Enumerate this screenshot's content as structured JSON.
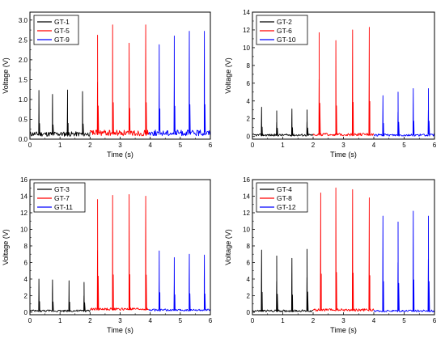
{
  "colors": {
    "black": "#000000",
    "red": "#ff0000",
    "blue": "#0000ff"
  },
  "chart_data": [
    {
      "type": "line",
      "xlabel": "Time (s)",
      "ylabel": "Voltage (V)",
      "xlim": [
        0,
        6
      ],
      "ylim": [
        0,
        3.2
      ],
      "xticks": [
        0,
        1,
        2,
        3,
        4,
        5,
        6
      ],
      "yticks": [
        0.0,
        0.5,
        1.0,
        1.5,
        2.0,
        2.5,
        3.0
      ],
      "ytick_labels": [
        "0.0",
        "0.5",
        "1.0",
        "1.5",
        "2.0",
        "2.5",
        "3.0"
      ],
      "legend_position": "top-left",
      "series": [
        {
          "name": "GT-1",
          "color": "#000000",
          "x_range": [
            0,
            2.0
          ],
          "baseline": 0.1,
          "noise": 0.12,
          "peaks": [
            [
              0.3,
              1.23
            ],
            [
              0.75,
              1.13
            ],
            [
              1.25,
              1.24
            ],
            [
              1.75,
              1.2
            ]
          ]
        },
        {
          "name": "GT-5",
          "color": "#ff0000",
          "x_range": [
            2.0,
            3.95
          ],
          "baseline": 0.12,
          "noise": 0.15,
          "peaks": [
            [
              2.25,
              2.62
            ],
            [
              2.75,
              2.88
            ],
            [
              3.3,
              2.42
            ],
            [
              3.85,
              2.88
            ]
          ]
        },
        {
          "name": "GT-9",
          "color": "#0000ff",
          "x_range": [
            3.95,
            6.0
          ],
          "baseline": 0.12,
          "noise": 0.15,
          "peaks": [
            [
              4.3,
              2.38
            ],
            [
              4.8,
              2.6
            ],
            [
              5.3,
              2.72
            ],
            [
              5.8,
              2.72
            ]
          ]
        }
      ]
    },
    {
      "type": "line",
      "xlabel": "Time (s)",
      "ylabel": "Voltage (V)",
      "xlim": [
        0,
        6
      ],
      "ylim": [
        -0.3,
        14
      ],
      "xticks": [
        0,
        1,
        2,
        3,
        4,
        5,
        6
      ],
      "yticks": [
        0,
        2,
        4,
        6,
        8,
        10,
        12,
        14
      ],
      "ytick_labels": [
        "0",
        "2",
        "4",
        "6",
        "8",
        "10",
        "12",
        "14"
      ],
      "legend_position": "top-left",
      "series": [
        {
          "name": "GT-2",
          "color": "#000000",
          "x_range": [
            0,
            2.0
          ],
          "baseline": 0.1,
          "noise": 0.25,
          "peaks": [
            [
              0.3,
              3.3
            ],
            [
              0.8,
              2.9
            ],
            [
              1.3,
              3.1
            ],
            [
              1.8,
              3.0
            ]
          ]
        },
        {
          "name": "GT-6",
          "color": "#ff0000",
          "x_range": [
            2.0,
            4.0
          ],
          "baseline": 0.15,
          "noise": 0.3,
          "peaks": [
            [
              2.2,
              11.7
            ],
            [
              2.75,
              10.8
            ],
            [
              3.3,
              12.0
            ],
            [
              3.85,
              12.3
            ]
          ]
        },
        {
          "name": "GT-10",
          "color": "#0000ff",
          "x_range": [
            4.0,
            6.0
          ],
          "baseline": 0.1,
          "noise": 0.25,
          "peaks": [
            [
              4.3,
              4.6
            ],
            [
              4.8,
              5.0
            ],
            [
              5.3,
              5.4
            ],
            [
              5.8,
              5.4
            ]
          ]
        }
      ]
    },
    {
      "type": "line",
      "xlabel": "Time (s)",
      "ylabel": "Voltage (V)",
      "xlim": [
        0,
        6
      ],
      "ylim": [
        -0.3,
        16
      ],
      "xticks": [
        0,
        1,
        2,
        3,
        4,
        5,
        6
      ],
      "yticks": [
        0,
        2,
        4,
        6,
        8,
        10,
        12,
        14,
        16
      ],
      "ytick_labels": [
        "0",
        "2",
        "4",
        "6",
        "8",
        "10",
        "12",
        "14",
        "16"
      ],
      "legend_position": "top-left",
      "series": [
        {
          "name": "GT-3",
          "color": "#000000",
          "x_range": [
            0,
            2.0
          ],
          "baseline": 0.1,
          "noise": 0.25,
          "peaks": [
            [
              0.3,
              4.0
            ],
            [
              0.75,
              3.9
            ],
            [
              1.3,
              3.8
            ],
            [
              1.8,
              3.6
            ]
          ]
        },
        {
          "name": "GT-7",
          "color": "#ff0000",
          "x_range": [
            2.0,
            3.95
          ],
          "baseline": 0.3,
          "noise": 0.3,
          "peaks": [
            [
              2.25,
              13.6
            ],
            [
              2.75,
              14.1
            ],
            [
              3.3,
              14.2
            ],
            [
              3.85,
              14.0
            ]
          ]
        },
        {
          "name": "GT-11",
          "color": "#0000ff",
          "x_range": [
            3.95,
            6.0
          ],
          "baseline": 0.2,
          "noise": 0.25,
          "peaks": [
            [
              4.3,
              7.4
            ],
            [
              4.8,
              6.6
            ],
            [
              5.3,
              7.0
            ],
            [
              5.8,
              6.9
            ]
          ]
        }
      ]
    },
    {
      "type": "line",
      "xlabel": "Time (s)",
      "ylabel": "Voltage (V)",
      "xlim": [
        0,
        6
      ],
      "ylim": [
        -0.3,
        16
      ],
      "xticks": [
        0,
        1,
        2,
        3,
        4,
        5,
        6
      ],
      "yticks": [
        0,
        2,
        4,
        6,
        8,
        10,
        12,
        14,
        16
      ],
      "ytick_labels": [
        "0",
        "2",
        "4",
        "6",
        "8",
        "10",
        "12",
        "14",
        "16"
      ],
      "legend_position": "top-left",
      "series": [
        {
          "name": "GT-4",
          "color": "#000000",
          "x_range": [
            0,
            2.0
          ],
          "baseline": 0.1,
          "noise": 0.25,
          "peaks": [
            [
              0.3,
              7.5
            ],
            [
              0.8,
              6.8
            ],
            [
              1.3,
              6.5
            ],
            [
              1.8,
              7.6
            ]
          ]
        },
        {
          "name": "GT-8",
          "color": "#ff0000",
          "x_range": [
            2.0,
            4.0
          ],
          "baseline": 0.2,
          "noise": 0.3,
          "peaks": [
            [
              2.25,
              14.4
            ],
            [
              2.75,
              15.0
            ],
            [
              3.3,
              14.8
            ],
            [
              3.85,
              13.8
            ]
          ]
        },
        {
          "name": "GT-12",
          "color": "#0000ff",
          "x_range": [
            4.0,
            6.0
          ],
          "baseline": 0.1,
          "noise": 0.25,
          "peaks": [
            [
              4.3,
              11.6
            ],
            [
              4.8,
              10.9
            ],
            [
              5.3,
              12.2
            ],
            [
              5.8,
              11.6
            ]
          ]
        }
      ]
    }
  ]
}
